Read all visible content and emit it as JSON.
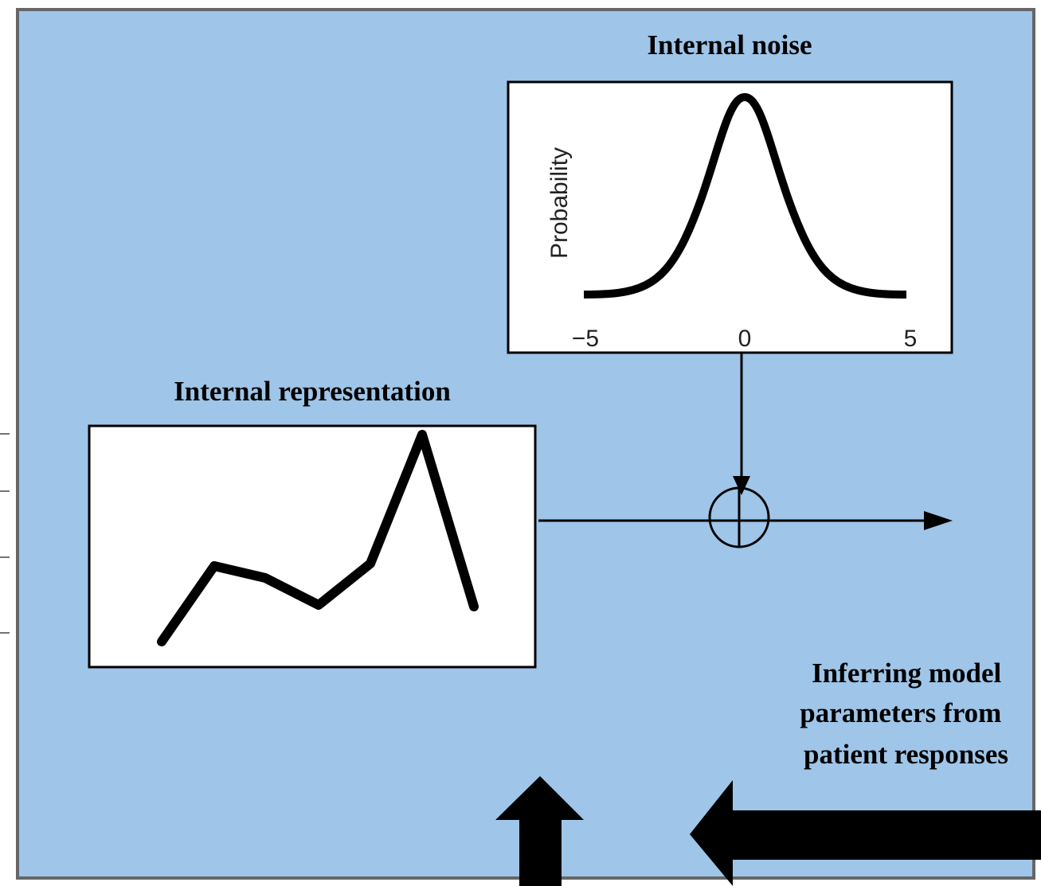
{
  "noise_panel": {
    "title": "Internal noise",
    "y_label": "Probability",
    "x_tick_labels": [
      "−5",
      "0",
      "5"
    ]
  },
  "representation_panel": {
    "title": "Internal representation"
  },
  "inference_note": {
    "lines": [
      "Inferring model",
      "parameters from",
      "patient responses"
    ]
  }
}
